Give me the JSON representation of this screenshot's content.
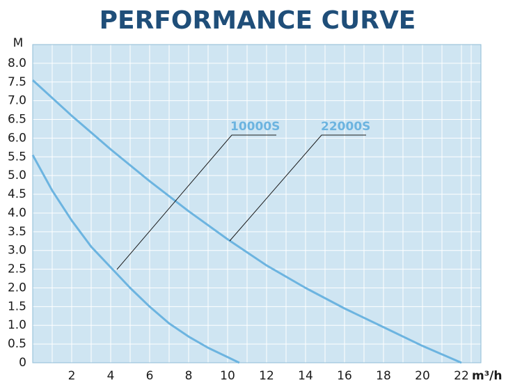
{
  "chart_data": {
    "type": "line",
    "title": "PERFORMANCE CURVE",
    "y_label": "M",
    "x_label": "m³/h",
    "xlim": [
      0,
      23
    ],
    "ylim": [
      0,
      8.5
    ],
    "xticks": [
      2,
      4,
      6,
      8,
      10,
      12,
      14,
      16,
      18,
      20,
      22
    ],
    "yticks": [
      0,
      0.5,
      {
        "value": 1,
        "label": "1.0"
      },
      1.5,
      {
        "value": 2,
        "label": "2.0"
      },
      2.5,
      {
        "value": 3,
        "label": "3.0"
      },
      3.5,
      {
        "value": 4,
        "label": "4.0"
      },
      4.5,
      {
        "value": 5,
        "label": "5.0"
      },
      5.5,
      {
        "value": 6,
        "label": "6.0"
      },
      6.5,
      {
        "value": 7,
        "label": "7.0"
      },
      7.5,
      {
        "value": 8,
        "label": "8.0"
      }
    ],
    "grid": true,
    "background": "#cfe5f2",
    "series": [
      {
        "name": "10000S",
        "color": "#6cb4e0",
        "x": [
          0,
          1,
          2,
          3,
          4,
          5,
          6,
          7,
          8,
          9,
          10,
          10.6
        ],
        "values": [
          5.55,
          4.6,
          3.8,
          3.1,
          2.55,
          2.0,
          1.5,
          1.05,
          0.7,
          0.4,
          0.15,
          0
        ]
      },
      {
        "name": "22000S",
        "color": "#6cb4e0",
        "x": [
          0,
          2,
          4,
          6,
          8,
          10,
          12,
          14,
          16,
          18,
          20,
          22
        ],
        "values": [
          7.55,
          6.6,
          5.7,
          4.85,
          4.05,
          3.3,
          2.6,
          2.0,
          1.45,
          0.95,
          0.45,
          0
        ]
      }
    ]
  }
}
